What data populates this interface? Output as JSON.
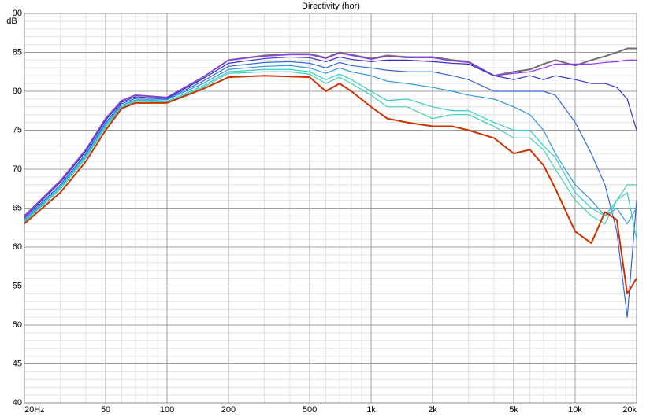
{
  "chart_data": {
    "type": "line",
    "title": "Directivity (hor)",
    "y_label": "dB",
    "xscale": "log",
    "grid": true,
    "minor_grid": true,
    "y_minor_step": 1,
    "xlim": [
      20,
      20000
    ],
    "ylim": [
      40,
      90
    ],
    "xticks": [
      {
        "value": 20,
        "label": "20Hz"
      },
      50,
      100,
      200,
      500,
      {
        "value": 1000,
        "label": "1k"
      },
      {
        "value": 2000,
        "label": "2k"
      },
      {
        "value": 5000,
        "label": "5k"
      },
      {
        "value": 10000,
        "label": "10k"
      },
      {
        "value": 20000,
        "label": "20k"
      }
    ],
    "yticks": [
      40,
      45,
      50,
      55,
      60,
      65,
      70,
      75,
      80,
      85,
      90
    ],
    "x": [
      20,
      30,
      40,
      50,
      60,
      70,
      80,
      100,
      150,
      200,
      300,
      400,
      500,
      600,
      700,
      800,
      1000,
      1200,
      1500,
      2000,
      2500,
      3000,
      4000,
      5000,
      6000,
      7000,
      8000,
      10000,
      12000,
      14000,
      16000,
      18000,
      20000
    ],
    "series": [
      {
        "color": "#707070",
        "line_width": 2,
        "values": [
          64,
          68.5,
          72.5,
          76.5,
          78.8,
          79.5,
          79.4,
          79.2,
          81.8,
          84,
          84.6,
          84.8,
          84.8,
          84.3,
          85,
          84.7,
          84.2,
          84.6,
          84.4,
          84.4,
          84,
          83.8,
          82,
          82.5,
          82.8,
          83.5,
          84,
          83.3,
          84,
          84.5,
          85,
          85.5,
          85.5
        ]
      },
      {
        "color": "#9933ff",
        "line_width": 1.2,
        "values": [
          64,
          68.5,
          72.5,
          76.5,
          78.8,
          79.5,
          79.4,
          79.2,
          81.8,
          84,
          84.5,
          84.7,
          84.7,
          84.2,
          84.9,
          84.6,
          84.1,
          84.5,
          84.3,
          84.3,
          83.9,
          83.7,
          82,
          82.3,
          82.5,
          83,
          83.5,
          83.5,
          83.5,
          83.7,
          83.8,
          84,
          84
        ]
      },
      {
        "color": "#3333cc",
        "line_width": 1.2,
        "values": [
          63.8,
          68.3,
          72.3,
          76.3,
          78.6,
          79.3,
          79.2,
          79.1,
          81.6,
          83.6,
          84.2,
          84.4,
          84.3,
          83.8,
          84.4,
          84.1,
          83.8,
          84,
          84,
          83.8,
          83.6,
          83.5,
          82,
          81.5,
          82,
          81.5,
          82,
          81.5,
          81,
          81,
          80.5,
          79,
          75
        ]
      },
      {
        "color": "#3366dd",
        "line_width": 1.2,
        "values": [
          63.6,
          68,
          72,
          76,
          78.4,
          79.1,
          79.1,
          79,
          81.3,
          83.2,
          83.7,
          83.8,
          83.6,
          83,
          83.7,
          83.3,
          83,
          82.7,
          82.5,
          82.5,
          82,
          81.5,
          80,
          80,
          80,
          80,
          79.5,
          76,
          72,
          68,
          62,
          51,
          66
        ]
      },
      {
        "color": "#3399dd",
        "line_width": 1.2,
        "values": [
          63.4,
          67.8,
          71.8,
          75.8,
          78.2,
          78.9,
          78.9,
          78.9,
          81,
          82.8,
          83.2,
          83.3,
          83,
          82.3,
          83,
          82.5,
          82,
          81.3,
          81,
          80.5,
          80,
          79.5,
          79,
          78,
          77,
          75,
          72,
          68,
          66,
          64,
          65,
          63,
          65
        ]
      },
      {
        "color": "#33cccc",
        "line_width": 1.2,
        "values": [
          63.3,
          67.6,
          71.6,
          75.6,
          78,
          78.8,
          78.8,
          78.7,
          80.7,
          82.5,
          82.8,
          82.8,
          82.5,
          81.5,
          82.2,
          81.5,
          80,
          78.8,
          79,
          78,
          77.5,
          77.5,
          76,
          75,
          75,
          73,
          71.5,
          67,
          65,
          64,
          66,
          67,
          61
        ]
      },
      {
        "color": "#40d0b0",
        "line_width": 1.2,
        "values": [
          63.2,
          67.4,
          71.4,
          75.4,
          77.9,
          78.7,
          78.7,
          78.6,
          80.5,
          82.3,
          82.5,
          82.5,
          82.2,
          81,
          81.8,
          81,
          79.5,
          78,
          78,
          76.5,
          77,
          77,
          75.5,
          74,
          74,
          72.5,
          70,
          66,
          64,
          63,
          66,
          68,
          68
        ]
      },
      {
        "color": "#cc3300",
        "line_width": 2,
        "values": [
          63,
          67,
          71,
          75,
          77.8,
          78.5,
          78.5,
          78.5,
          80.3,
          81.8,
          82,
          81.9,
          81.8,
          80,
          81,
          80,
          78,
          76.5,
          76,
          75.5,
          75.5,
          75,
          74,
          72,
          72.5,
          70.5,
          67.5,
          62,
          60.5,
          64.5,
          63.5,
          54,
          56
        ]
      }
    ]
  }
}
